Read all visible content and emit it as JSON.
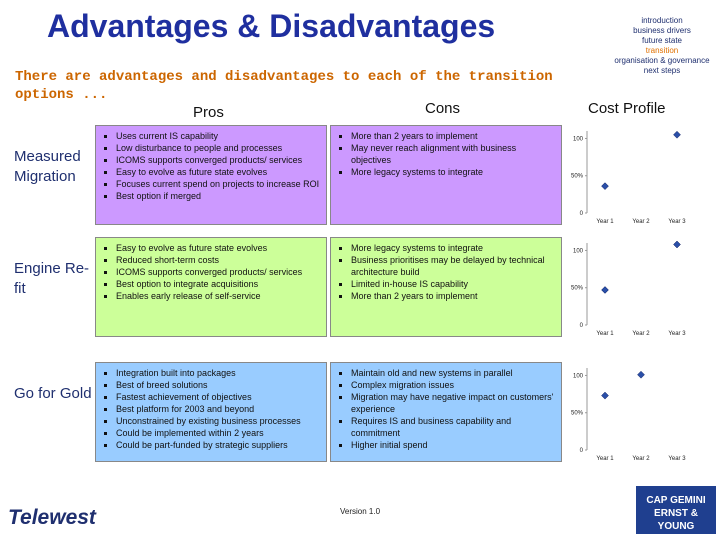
{
  "header": {
    "title": "Advantages & Disadvantages",
    "subtitle": "There are advantages and disadvantages to each of the transition options ...",
    "nav": [
      "introduction",
      "business drivers",
      "future state",
      "transition",
      "organisation & governance",
      "next steps"
    ],
    "nav_current": 3
  },
  "columns": [
    "Pros",
    "Cons",
    "Cost Profile"
  ],
  "rows": [
    {
      "label": "Measured Migration",
      "color": "#cc99ff",
      "pros": [
        "Uses current IS capability",
        "Low disturbance to people and processes",
        "ICOMS supports converged products/ services",
        "Easy to evolve as future state evolves",
        "Focuses current spend on projects to increase ROI",
        "Best option if merged"
      ],
      "cons": [
        "More than 2 years to implement",
        "May never reach alignment with business objectives",
        "More legacy systems to integrate"
      ],
      "cost_profile": {
        "type": "scatter",
        "categories": [
          "Year 1",
          "Year 2",
          "Year 3"
        ],
        "values": [
          36,
          null,
          105
        ],
        "ylim": [
          0,
          110
        ],
        "yticks": [
          0,
          {
            "value": 50,
            "label": "50%"
          },
          100
        ]
      }
    },
    {
      "label": "Engine Re-fit",
      "color": "#ccff99",
      "pros": [
        "Easy to evolve as future state evolves",
        "Reduced short-term costs",
        "ICOMS supports converged products/ services",
        "Best option to integrate acquisitions",
        "Enables early release of self-service"
      ],
      "cons": [
        "More legacy systems to integrate",
        "Business prioritises may be delayed by technical architecture build",
        "Limited in-house IS capability",
        "More than 2 years to implement"
      ],
      "cost_profile": {
        "type": "scatter",
        "categories": [
          "Year 1",
          "Year 2",
          "Year 3"
        ],
        "values": [
          47,
          null,
          108
        ],
        "ylim": [
          0,
          110
        ],
        "yticks": [
          0,
          {
            "value": 50,
            "label": "50%"
          },
          100
        ]
      }
    },
    {
      "label": "Go for Gold",
      "color": "#99ccff",
      "pros": [
        "Integration built into packages",
        "Best of breed solutions",
        "Fastest achievement of objectives",
        "Best platform for 2003 and beyond",
        "Unconstrained by existing business processes",
        "Could be implemented within 2 years",
        "Could be part-funded by strategic suppliers"
      ],
      "cons": [
        "Maintain old and new systems in parallel",
        "Complex migration issues",
        "Migration may have negative impact on customers' experience",
        "Requires IS and business capability and commitment",
        "Higher initial spend"
      ],
      "cost_profile": {
        "type": "scatter",
        "categories": [
          "Year 1",
          "Year 2",
          "Year 3"
        ],
        "values": [
          73,
          101,
          null
        ],
        "ylim": [
          0,
          110
        ],
        "yticks": [
          0,
          {
            "value": 50,
            "label": "50%"
          },
          100
        ]
      }
    }
  ],
  "footer": {
    "left_logo": "Telewest",
    "version": "Version 1.0",
    "right_logo": "CAP GEMINI ERNST & YOUNG"
  }
}
